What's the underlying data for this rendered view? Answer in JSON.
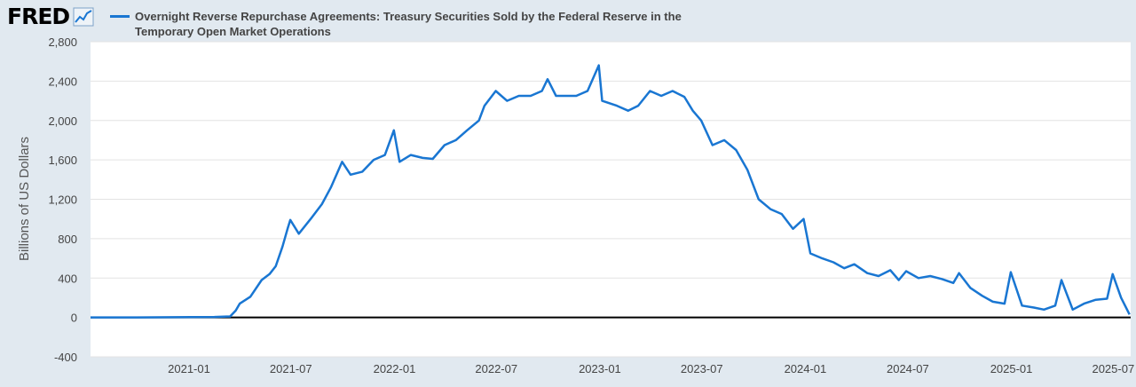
{
  "header": {
    "logo_text": "FRED",
    "legend_label": "Overnight Reverse Repurchase Agreements: Treasury Securities Sold by the Federal Reserve in the Temporary Open Market Operations"
  },
  "chart_data": {
    "type": "line",
    "title": "",
    "xlabel": "",
    "ylabel": "Billions of US Dollars",
    "ylim": [
      -400,
      2800
    ],
    "yticks": [
      2800,
      2400,
      2000,
      1600,
      1200,
      800,
      400,
      0,
      -400
    ],
    "yticklabels": [
      "2,800",
      "2,400",
      "2,000",
      "1,600",
      "1,200",
      "800",
      "400",
      "0",
      "-400"
    ],
    "xlim": [
      "2020-07-10",
      "2025-08-01"
    ],
    "xticks": [
      "2021-01",
      "2021-07",
      "2022-01",
      "2022-07",
      "2023-01",
      "2023-07",
      "2024-01",
      "2024-07",
      "2025-01",
      "2025-07"
    ],
    "grid": true,
    "color": "#1976d2",
    "series": [
      {
        "name": "Overnight Reverse Repurchase Agreements: Treasury Securities Sold by the Federal Reserve in the Temporary Open Market Operations",
        "x": [
          "2020-07-10",
          "2020-10-01",
          "2021-01-04",
          "2021-02-15",
          "2021-03-15",
          "2021-03-25",
          "2021-04-01",
          "2021-04-20",
          "2021-05-10",
          "2021-05-24",
          "2021-06-04",
          "2021-06-16",
          "2021-06-25",
          "2021-06-30",
          "2021-07-15",
          "2021-08-05",
          "2021-08-25",
          "2021-09-10",
          "2021-09-30",
          "2021-10-15",
          "2021-11-05",
          "2021-11-25",
          "2021-12-15",
          "2021-12-31",
          "2022-01-10",
          "2022-01-30",
          "2022-02-20",
          "2022-03-10",
          "2022-03-31",
          "2022-04-20",
          "2022-05-10",
          "2022-05-31",
          "2022-06-10",
          "2022-06-30",
          "2022-07-20",
          "2022-08-10",
          "2022-08-31",
          "2022-09-20",
          "2022-09-30",
          "2022-10-15",
          "2022-11-01",
          "2022-11-20",
          "2022-12-10",
          "2022-12-30",
          "2023-01-05",
          "2023-01-31",
          "2023-02-20",
          "2023-03-10",
          "2023-03-31",
          "2023-04-20",
          "2023-05-10",
          "2023-05-31",
          "2023-06-15",
          "2023-06-30",
          "2023-07-20",
          "2023-08-10",
          "2023-08-31",
          "2023-09-20",
          "2023-10-10",
          "2023-10-31",
          "2023-11-20",
          "2023-12-10",
          "2023-12-29",
          "2024-01-10",
          "2024-01-31",
          "2024-02-20",
          "2024-03-10",
          "2024-03-28",
          "2024-04-20",
          "2024-05-10",
          "2024-05-31",
          "2024-06-15",
          "2024-06-28",
          "2024-07-20",
          "2024-08-10",
          "2024-08-31",
          "2024-09-20",
          "2024-09-30",
          "2024-10-20",
          "2024-11-10",
          "2024-11-29",
          "2024-12-20",
          "2024-12-31",
          "2025-01-20",
          "2025-02-10",
          "2025-02-28",
          "2025-03-20",
          "2025-03-31",
          "2025-04-20",
          "2025-05-10",
          "2025-05-31",
          "2025-06-20",
          "2025-06-30",
          "2025-07-15",
          "2025-07-30"
        ],
        "y": [
          0,
          0,
          3,
          5,
          10,
          70,
          140,
          210,
          380,
          440,
          520,
          720,
          900,
          990,
          850,
          1000,
          1150,
          1320,
          1580,
          1450,
          1480,
          1600,
          1650,
          1900,
          1580,
          1650,
          1620,
          1610,
          1750,
          1800,
          1900,
          2000,
          2150,
          2300,
          2200,
          2250,
          2250,
          2300,
          2420,
          2250,
          2250,
          2250,
          2300,
          2560,
          2200,
          2150,
          2100,
          2150,
          2300,
          2250,
          2300,
          2240,
          2100,
          2000,
          1750,
          1800,
          1700,
          1500,
          1200,
          1100,
          1050,
          900,
          1000,
          650,
          600,
          560,
          500,
          540,
          450,
          420,
          480,
          380,
          470,
          400,
          420,
          390,
          350,
          450,
          300,
          220,
          160,
          140,
          460,
          120,
          100,
          80,
          120,
          380,
          80,
          140,
          180,
          190,
          440,
          200,
          30
        ]
      }
    ]
  }
}
